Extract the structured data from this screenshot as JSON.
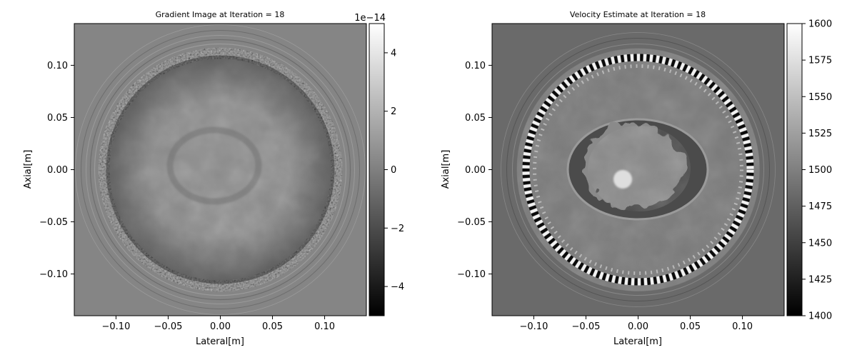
{
  "chart_data": [
    {
      "type": "heatmap",
      "title": "Gradient Image at Iteration = 18",
      "xlabel": "Lateral[m]",
      "ylabel": "Axial[m]",
      "xlim": [
        -0.14,
        0.14
      ],
      "ylim": [
        -0.14,
        0.14
      ],
      "x_ticks": [
        -0.1,
        -0.05,
        0.0,
        0.05,
        0.1
      ],
      "x_tick_labels": [
        "−0.10",
        "−0.05",
        "0.00",
        "0.05",
        "0.10"
      ],
      "y_ticks": [
        0.1,
        0.05,
        0.0,
        -0.05,
        -0.1
      ],
      "y_tick_labels": [
        "0.10",
        "0.05",
        "0.00",
        "−0.05",
        "−0.10"
      ],
      "colormap": "gray",
      "colorbar": {
        "range": [
          -5,
          5
        ],
        "ticks": [
          4,
          2,
          0,
          -2,
          -4
        ],
        "tick_labels": [
          "4",
          "2",
          "0",
          "−2",
          "−4"
        ],
        "offset_label": "1e−14"
      },
      "background_level": 0.0,
      "features": [
        {
          "shape": "ring",
          "center": [
            0.0,
            0.0
          ],
          "radius": 0.115,
          "texture": "speckle",
          "level": 0.0
        },
        {
          "shape": "disk",
          "center": [
            0.0,
            0.0
          ],
          "radius": 0.105,
          "texture": "mottled",
          "level": 0.3
        }
      ]
    },
    {
      "type": "heatmap",
      "title": "Velocity Estimate at Iteration = 18",
      "xlabel": "Lateral[m]",
      "ylabel": "Axial[m]",
      "xlim": [
        -0.14,
        0.14
      ],
      "ylim": [
        -0.14,
        0.14
      ],
      "x_ticks": [
        -0.1,
        -0.05,
        0.0,
        0.05,
        0.1
      ],
      "x_tick_labels": [
        "−0.10",
        "−0.05",
        "0.00",
        "0.05",
        "0.10"
      ],
      "y_ticks": [
        0.1,
        0.05,
        0.0,
        -0.05,
        -0.1
      ],
      "y_tick_labels": [
        "0.10",
        "0.05",
        "0.00",
        "−0.05",
        "−0.10"
      ],
      "colormap": "gray",
      "colorbar": {
        "range": [
          1400,
          1600
        ],
        "ticks": [
          1600,
          1575,
          1550,
          1525,
          1500,
          1475,
          1450,
          1425,
          1400
        ],
        "tick_labels": [
          "1600",
          "1575",
          "1550",
          "1525",
          "1500",
          "1475",
          "1450",
          "1425",
          "1400"
        ]
      },
      "background_level": 1480,
      "features": [
        {
          "shape": "disk",
          "center": [
            0.0,
            0.0
          ],
          "radius": 0.11,
          "level": 1510
        },
        {
          "shape": "ring",
          "center": [
            0.0,
            0.0
          ],
          "radius": 0.107,
          "texture": "alternating",
          "level": 1500
        },
        {
          "shape": "ellipse",
          "center": [
            0.005,
            0.008
          ],
          "rx": 0.068,
          "ry": 0.048,
          "level": 1465
        },
        {
          "shape": "blob",
          "center": [
            0.005,
            0.015
          ],
          "radius": 0.04,
          "level": 1520
        },
        {
          "shape": "disk",
          "center": [
            -0.015,
            -0.01
          ],
          "radius": 0.009,
          "level": 1575
        }
      ]
    }
  ]
}
